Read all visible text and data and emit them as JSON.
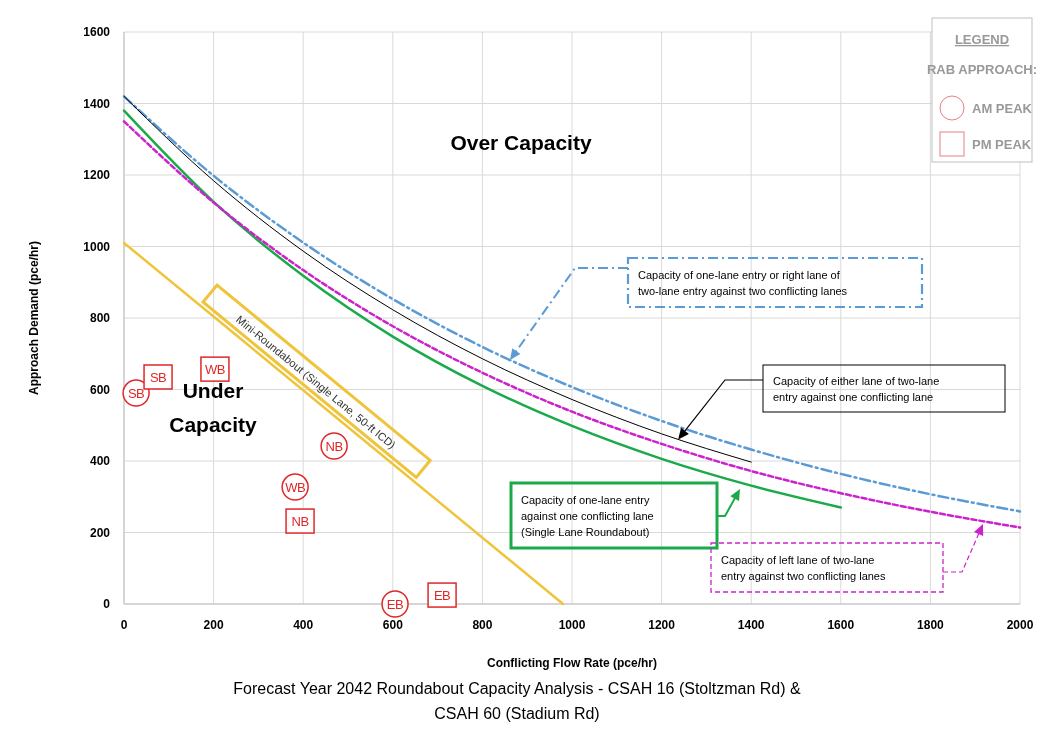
{
  "chart_data": {
    "type": "line",
    "title": "Forecast Year 2042 Roundabout Capacity Analysis - CSAH 16 (Stoltzman Rd) &\nCSAH 60 (Stadium Rd)",
    "xlabel": "Conflicting Flow Rate (pce/hr)",
    "ylabel": "Approach Demand (pce/hr)",
    "xlim": [
      0,
      2000
    ],
    "xticks": [
      0,
      200,
      400,
      600,
      800,
      1000,
      1200,
      1400,
      1600,
      1800,
      2000
    ],
    "ylim": [
      0,
      1600
    ],
    "yticks": [
      0,
      200,
      400,
      600,
      800,
      1000,
      1200,
      1400,
      1600
    ],
    "grid": true,
    "legend": "top right",
    "legend_title": "LEGEND\nRAB APPROACH:",
    "series": [
      {
        "color": "#5b9bd5",
        "line_style": "dashdot",
        "x": [
          0,
          200,
          400,
          600,
          800,
          1000,
          1200,
          1400,
          1600,
          1800,
          2000
        ],
        "values": [
          1420,
          1198,
          1011,
          853,
          719,
          607,
          512,
          432,
          364,
          307,
          259
        ]
      },
      {
        "color": "#000000",
        "line_style": "solid",
        "x": [
          0,
          200,
          400,
          600,
          800,
          1000,
          1200,
          1400
        ],
        "values": [
          1420,
          1184,
          987,
          823,
          686,
          572,
          476,
          397
        ]
      },
      {
        "color": "#1aaa4a",
        "line_style": "solid",
        "x": [
          0,
          200,
          400,
          600,
          800,
          1000,
          1200,
          1400,
          1600
        ],
        "values": [
          1380,
          1125,
          918,
          748,
          610,
          498,
          406,
          331,
          270
        ]
      },
      {
        "color": "#cc22cc",
        "line_style": "dashed",
        "x": [
          0,
          200,
          400,
          600,
          800,
          1000,
          1200,
          1400,
          1600,
          1800,
          2000
        ],
        "values": [
          1350,
          1123,
          934,
          777,
          647,
          538,
          448,
          372,
          310,
          258,
          214
        ]
      },
      {
        "color": "#f0c43a",
        "line_style": "solid",
        "x": [
          0,
          980
        ],
        "values": [
          1010,
          0
        ]
      },
      {
        "type": "scatter",
        "name": "AM PEAK",
        "marker": "circle",
        "color": "#e02828",
        "x": [
          27,
          382,
          469,
          605
        ],
        "values": [
          590,
          327,
          442,
          0
        ],
        "value_labels": [
          "SB",
          "WB",
          "NB",
          "EB"
        ]
      },
      {
        "type": "scatter",
        "name": "PM PEAK",
        "marker": "square",
        "color": "#e02828",
        "x": [
          76,
          203,
          393,
          710
        ],
        "values": [
          635,
          657,
          232,
          25
        ],
        "value_labels": [
          "SB",
          "WB",
          "NB",
          "EB"
        ]
      }
    ],
    "annotations": [
      "Over Capacity",
      "Under\nCapacity",
      "Mini-Roundabout (Single Lane, 50-ft ICD)",
      "Capacity of one-lane entry or right lane of\ntwo-lane entry against two conflicting lanes",
      {
        "text": "Capacity of either lane of two-lane\nentry against one conflicting lane",
        "x": 1237,
        "y": 460
      },
      "Capacity of one-lane entry\nagainst one conflicting lane\n(Single Lane Roundabout)",
      "Capacity of left lane of two-lane\nentry against two conflicting lanes"
    ]
  }
}
